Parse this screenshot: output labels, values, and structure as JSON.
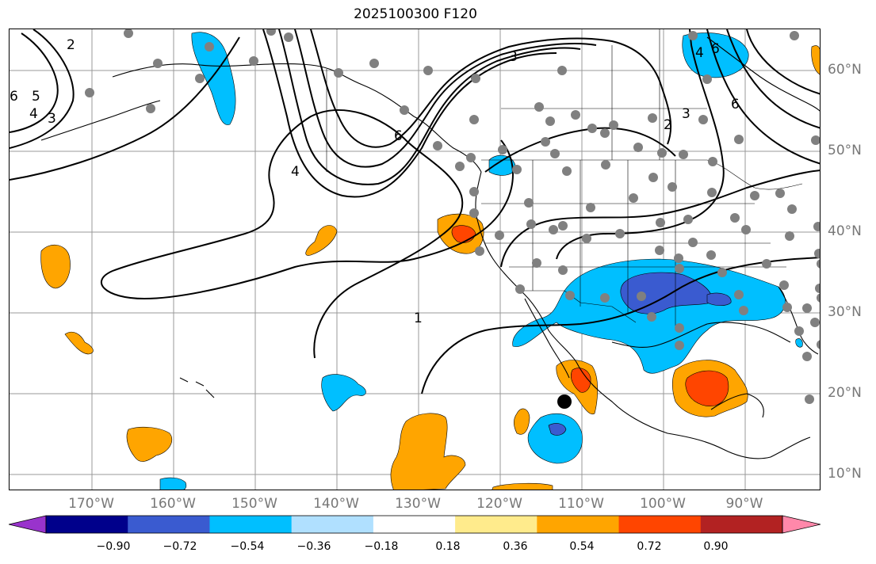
{
  "title": "2025100300 F120",
  "lon_labels": [
    "170°W",
    "160°W",
    "150°W",
    "140°W",
    "130°W",
    "120°W",
    "110°W",
    "100°W",
    "90°W"
  ],
  "lat_labels": [
    "60°N",
    "50°N",
    "40°N",
    "30°N",
    "20°N",
    "10°N"
  ],
  "colorbar": {
    "ticks": [
      "−0.90",
      "−0.72",
      "−0.54",
      "−0.36",
      "−0.18",
      "0.18",
      "0.36",
      "0.54",
      "0.72",
      "0.90"
    ],
    "colors": [
      "#9933cc",
      "#00008b",
      "#3a5bd0",
      "#00bfff",
      "#b0e0ff",
      "#ffffff",
      "#ffeb8c",
      "#ffa500",
      "#ff4500",
      "#b22222",
      "#ff88aa"
    ]
  },
  "contour_labels": [
    "1",
    "2",
    "3",
    "4",
    "5",
    "6"
  ],
  "colors": {
    "positive_mid": "#ffa500",
    "positive_high": "#ff4500",
    "negative_mid": "#00bfff",
    "negative_high": "#3a5bd0",
    "station": "#808080",
    "marker": "#000000"
  }
}
